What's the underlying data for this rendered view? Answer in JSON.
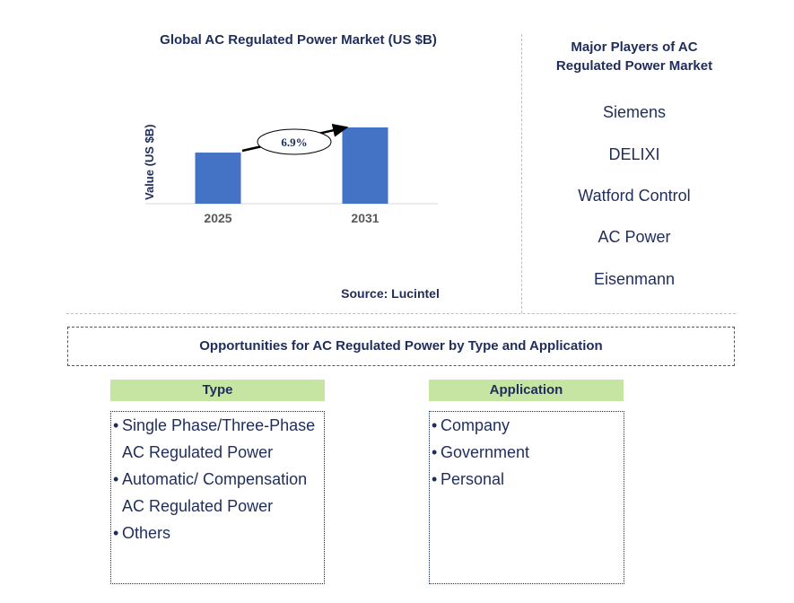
{
  "chart_data": {
    "type": "bar",
    "title": "Global AC Regulated Power Market (US $B)",
    "ylabel": "Value (US $B)",
    "categories": [
      "2025",
      "2031"
    ],
    "values": [
      0.67,
      1.0
    ],
    "ylim": [
      0,
      1.0
    ],
    "annotation": "6.9%",
    "bar_color": "#4472c4",
    "source": "Source: Lucintel"
  },
  "players": {
    "title": "Major Players of AC Regulated Power Market",
    "items": [
      "Siemens",
      "DELIXI",
      "Watford Control",
      "AC Power",
      "Eisenmann"
    ]
  },
  "opportunities": {
    "title": "Opportunities for AC Regulated Power by Type and Application",
    "type": {
      "header": "Type",
      "items": [
        "Single Phase/Three-Phase AC Regulated Power",
        "Automatic/ Compensation AC Regulated Power",
        "Others"
      ]
    },
    "application": {
      "header": "Application",
      "items": [
        "Company",
        "Government",
        "Personal"
      ]
    },
    "header_color": "#c6e5a3"
  }
}
